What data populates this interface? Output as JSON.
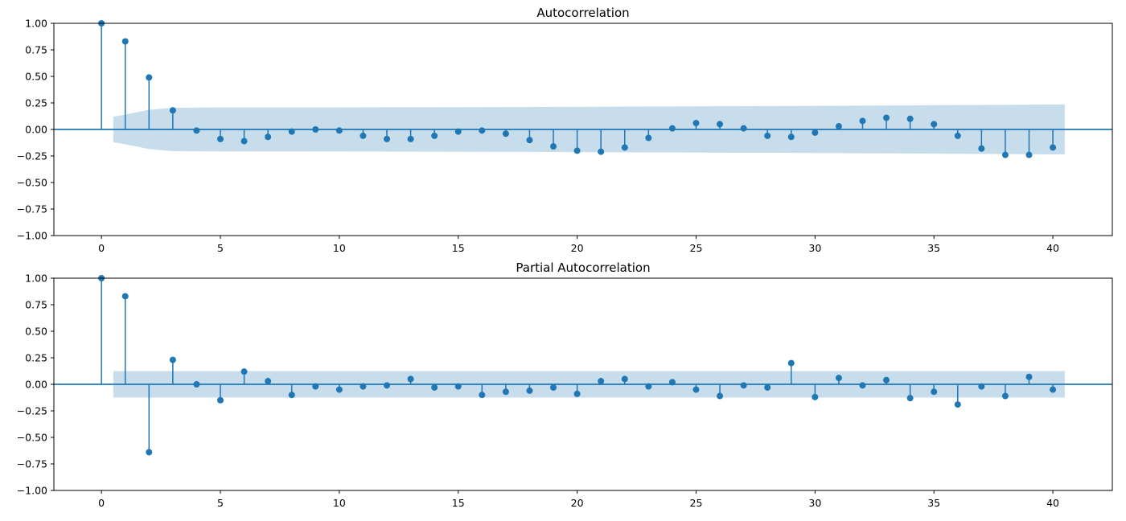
{
  "colors": {
    "series": "#1f77b4",
    "band": "#1f77b4",
    "axes": "#000000",
    "background": "#ffffff"
  },
  "chart_data": [
    {
      "type": "stem",
      "title": "Autocorrelation",
      "xlabel": "",
      "ylabel": "",
      "xlim": [
        -2,
        42.5
      ],
      "ylim": [
        -1.0,
        1.0
      ],
      "x_ticks": [
        0,
        5,
        10,
        15,
        20,
        25,
        30,
        35,
        40
      ],
      "y_ticks": [
        -1.0,
        -0.75,
        -0.5,
        -0.25,
        0.0,
        0.25,
        0.5,
        0.75,
        1.0
      ],
      "x_tick_labels": [
        "0",
        "5",
        "10",
        "15",
        "20",
        "25",
        "30",
        "35",
        "40"
      ],
      "y_tick_labels": [
        "−1.00",
        "−0.75",
        "−0.50",
        "−0.25",
        "0.00",
        "0.25",
        "0.50",
        "0.75",
        "1.00"
      ],
      "lags": [
        0,
        1,
        2,
        3,
        4,
        5,
        6,
        7,
        8,
        9,
        10,
        11,
        12,
        13,
        14,
        15,
        16,
        17,
        18,
        19,
        20,
        21,
        22,
        23,
        24,
        25,
        26,
        27,
        28,
        29,
        30,
        31,
        32,
        33,
        34,
        35,
        36,
        37,
        38,
        39,
        40
      ],
      "values": [
        1.0,
        0.83,
        0.49,
        0.18,
        -0.01,
        -0.09,
        -0.11,
        -0.07,
        -0.02,
        0.0,
        -0.01,
        -0.06,
        -0.09,
        -0.09,
        -0.06,
        -0.02,
        -0.01,
        -0.04,
        -0.1,
        -0.16,
        -0.2,
        -0.21,
        -0.17,
        -0.08,
        0.01,
        0.06,
        0.05,
        0.01,
        -0.06,
        -0.07,
        -0.03,
        0.03,
        0.08,
        0.11,
        0.1,
        0.05,
        -0.06,
        -0.18,
        -0.24,
        -0.24,
        -0.17
      ],
      "confidence_band": {
        "lags": [
          0.5,
          1,
          2,
          3,
          5,
          10,
          15,
          20,
          25,
          30,
          35,
          40,
          40.5
        ],
        "upper": [
          0.12,
          0.14,
          0.185,
          0.205,
          0.207,
          0.208,
          0.21,
          0.213,
          0.218,
          0.222,
          0.228,
          0.235,
          0.236
        ]
      },
      "grid": false
    },
    {
      "type": "stem",
      "title": "Partial Autocorrelation",
      "xlabel": "",
      "ylabel": "",
      "xlim": [
        -2,
        42.5
      ],
      "ylim": [
        -1.0,
        1.0
      ],
      "x_ticks": [
        0,
        5,
        10,
        15,
        20,
        25,
        30,
        35,
        40
      ],
      "y_ticks": [
        -1.0,
        -0.75,
        -0.5,
        -0.25,
        0.0,
        0.25,
        0.5,
        0.75,
        1.0
      ],
      "x_tick_labels": [
        "0",
        "5",
        "10",
        "15",
        "20",
        "25",
        "30",
        "35",
        "40"
      ],
      "y_tick_labels": [
        "−1.00",
        "−0.75",
        "−0.50",
        "−0.25",
        "0.00",
        "0.25",
        "0.50",
        "0.75",
        "1.00"
      ],
      "lags": [
        0,
        1,
        2,
        3,
        4,
        5,
        6,
        7,
        8,
        9,
        10,
        11,
        12,
        13,
        14,
        15,
        16,
        17,
        18,
        19,
        20,
        21,
        22,
        23,
        24,
        25,
        26,
        27,
        28,
        29,
        30,
        31,
        32,
        33,
        34,
        35,
        36,
        37,
        38,
        39,
        40
      ],
      "values": [
        1.0,
        0.83,
        -0.64,
        0.23,
        0.0,
        -0.15,
        0.12,
        0.03,
        -0.1,
        -0.02,
        -0.05,
        -0.02,
        -0.01,
        0.05,
        -0.03,
        -0.02,
        -0.1,
        -0.07,
        -0.06,
        -0.03,
        -0.09,
        0.03,
        0.05,
        -0.02,
        0.02,
        -0.05,
        -0.11,
        -0.01,
        -0.03,
        0.2,
        -0.12,
        0.06,
        -0.01,
        0.04,
        -0.13,
        -0.07,
        -0.19,
        -0.02,
        -0.11,
        0.07,
        -0.05
      ],
      "confidence_band": {
        "lags": [
          0.5,
          40.5
        ],
        "upper": [
          0.125,
          0.125
        ]
      },
      "grid": false
    }
  ]
}
